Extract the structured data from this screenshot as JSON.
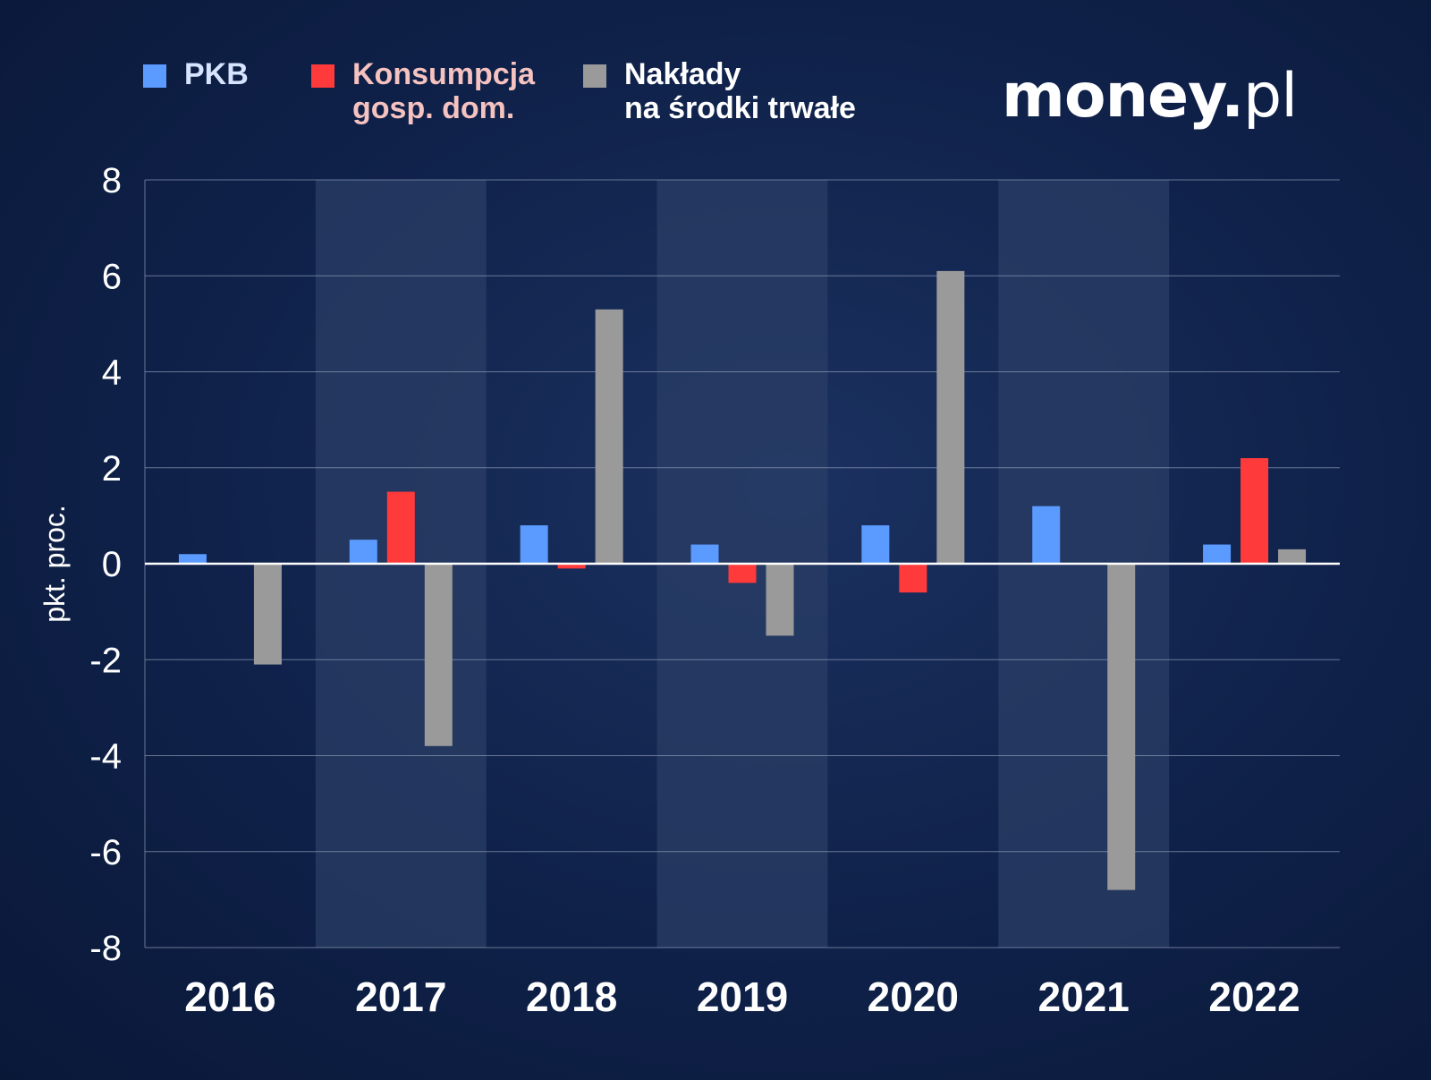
{
  "legend": [
    {
      "key": "pkb",
      "lines": [
        "PKB"
      ],
      "swatch_color": "#5b9bff",
      "text_color": "#d6e4ff"
    },
    {
      "key": "konsumpcja",
      "lines": [
        "Konsumpcja",
        "gosp. dom."
      ],
      "swatch_color": "#ff3a3a",
      "text_color": "#f5c2c0"
    },
    {
      "key": "naklady",
      "lines": [
        "Nakłady",
        "na środki trwałe"
      ],
      "swatch_color": "#9a9a9a",
      "text_color": "#ffffff"
    }
  ],
  "logo": {
    "main": "money",
    "dot": ".",
    "tld": "pl"
  },
  "colors": {
    "pkb": "#5b9bff",
    "konsumpcja": "#ff3a3a",
    "naklady": "#9a9a9a",
    "band": "#2a3e66",
    "grid": "#8e9bb8",
    "zero_line": "#ffffff",
    "text": "#ffffff"
  },
  "chart_data": {
    "type": "bar",
    "categories": [
      "2016",
      "2017",
      "2018",
      "2019",
      "2020",
      "2021",
      "2022"
    ],
    "series": [
      {
        "name": "PKB",
        "values": [
          0.2,
          0.5,
          0.8,
          0.4,
          0.8,
          1.2,
          0.4
        ]
      },
      {
        "name": "Konsumpcja gosp. dom.",
        "values": [
          0.0,
          1.5,
          -0.1,
          -0.4,
          -0.6,
          0.0,
          2.2
        ]
      },
      {
        "name": "Nakłady na środki trwałe",
        "values": [
          -2.1,
          -3.8,
          5.3,
          -1.5,
          6.1,
          -6.8,
          0.3
        ]
      }
    ],
    "ylabel": "pkt. proc.",
    "xlabel": "",
    "ylim": [
      -8,
      8
    ],
    "yticks": [
      8,
      6,
      4,
      2,
      0,
      -2,
      -4,
      -6,
      -8
    ],
    "grid": true,
    "legend_position": "top"
  }
}
